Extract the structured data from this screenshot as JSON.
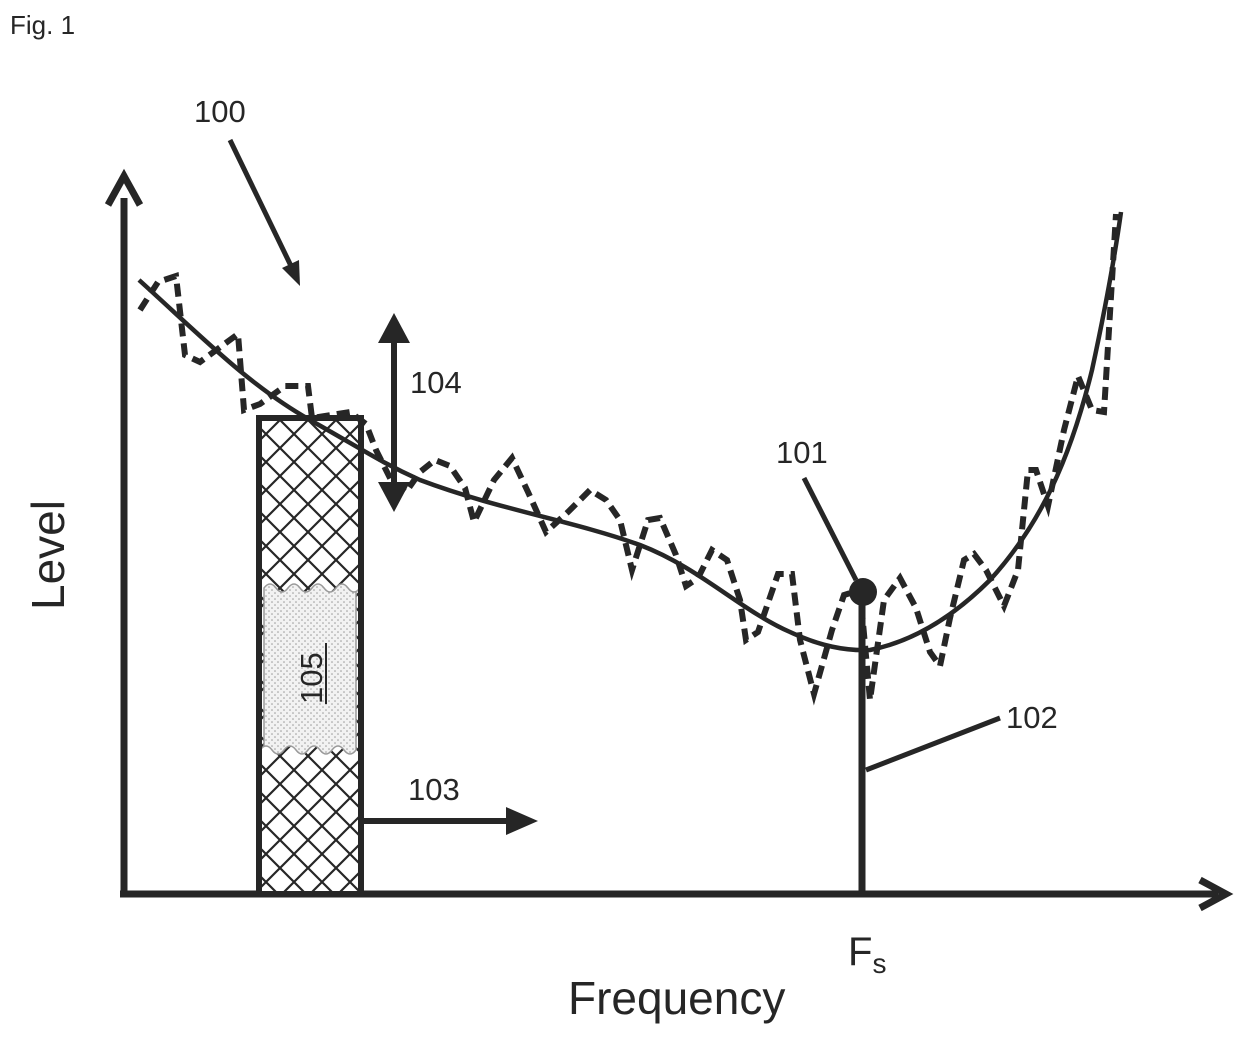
{
  "figure": {
    "title": "Fig. 1",
    "ylabel": "Level",
    "xlabel": "Frequency",
    "marker_label_main": "F",
    "marker_label_sub": "s",
    "refs": {
      "r100": "100",
      "r101": "101",
      "r102": "102",
      "r103": "103",
      "r104": "104",
      "r105": "105"
    },
    "colors": {
      "ink": "#262626",
      "background": "#ffffff"
    }
  }
}
